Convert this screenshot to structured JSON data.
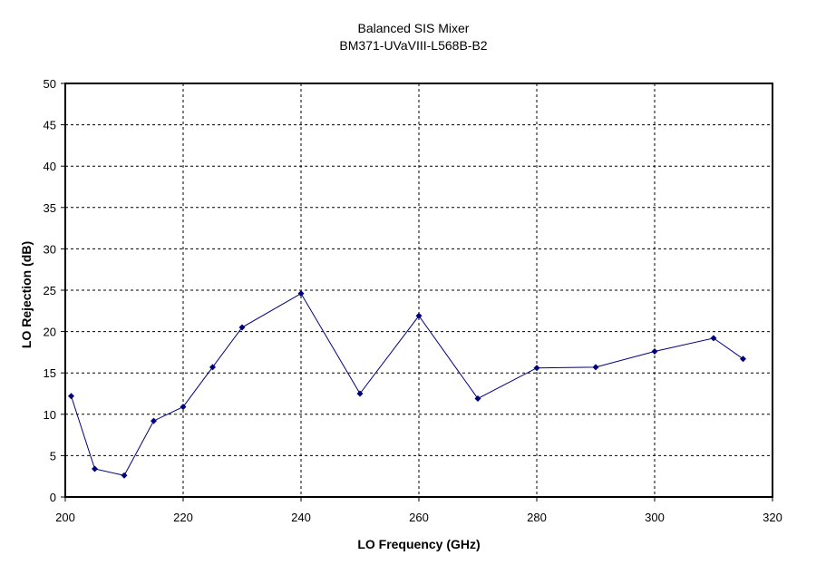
{
  "chart_data": {
    "type": "line",
    "title": "Balanced SIS Mixer",
    "subtitle": "BM371-UVaVIII-L568B-B2",
    "xlabel": "LO Frequency (GHz)",
    "ylabel": "LO Rejection (dB)",
    "xlim": [
      200,
      320
    ],
    "ylim": [
      0,
      50
    ],
    "xticks": [
      200,
      220,
      240,
      260,
      280,
      300,
      320
    ],
    "yticks": [
      0,
      5,
      10,
      15,
      20,
      25,
      30,
      35,
      40,
      45,
      50
    ],
    "grid": true,
    "series": [
      {
        "color": "#00007f",
        "x": [
          201,
          205,
          210,
          215,
          220,
          225,
          230,
          240,
          250,
          260,
          270,
          280,
          290,
          300,
          310,
          315
        ],
        "y": [
          12.2,
          3.4,
          2.6,
          9.2,
          10.9,
          15.7,
          20.5,
          24.6,
          12.5,
          21.9,
          11.9,
          15.6,
          15.7,
          17.6,
          19.2,
          16.7
        ]
      }
    ]
  }
}
